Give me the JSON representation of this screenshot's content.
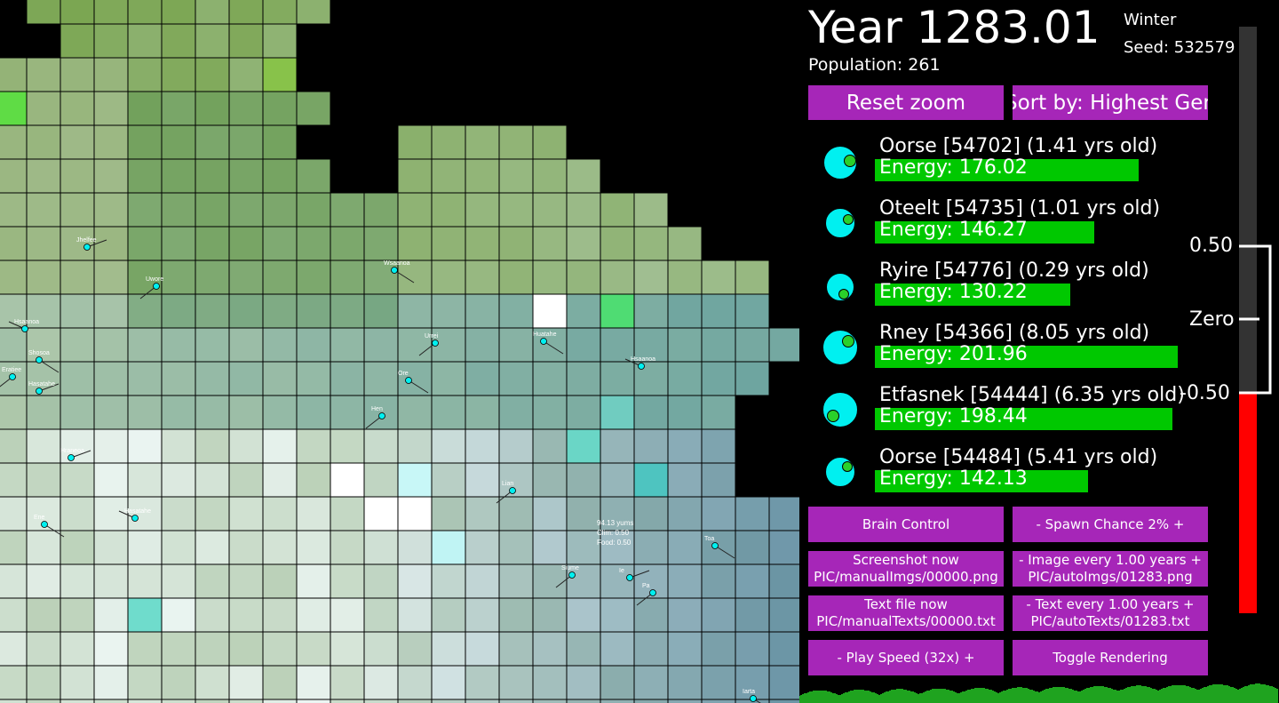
{
  "header": {
    "year": "Year 1283.01",
    "population": "Population: 261",
    "season": "Winter",
    "seed": "Seed: 532579"
  },
  "buttons": {
    "reset_zoom": "Reset zoom",
    "sort_by": "Sort by: Highest Gen",
    "brain_control": "Brain Control",
    "spawn_chance": "-   Spawn Chance 2%   +",
    "screenshot_line1": "Screenshot now",
    "screenshot_line2": "PIC/manualImgs/00000.png",
    "image_every_line1": "-   Image every 1.00 years   +",
    "image_every_line2": "PIC/autoImgs/01283.png",
    "textfile_line1": "Text file now",
    "textfile_line2": "PIC/manualTexts/00000.txt",
    "text_every_line1": "-   Text every 1.00 years   +",
    "text_every_line2": "PIC/autoTexts/01283.txt",
    "play_speed": "-    Play Speed (32x)    +",
    "toggle_rendering": "Toggle Rendering"
  },
  "creatures": [
    {
      "name": "Oorse [54702] (1.41 yrs old)",
      "energy_label": "Energy: 176.02",
      "energy": 176.02
    },
    {
      "name": "Oteelt [54735] (1.01 yrs old)",
      "energy_label": "Energy: 146.27",
      "energy": 146.27
    },
    {
      "name": "Ryire [54776] (0.29 yrs old)",
      "energy_label": "Energy: 130.22",
      "energy": 130.22
    },
    {
      "name": "Rney [54366] (8.05 yrs old)",
      "energy_label": "Energy: 201.96",
      "energy": 201.96
    },
    {
      "name": "Etfasnek [54444] (6.35 yrs old)",
      "energy_label": "Energy: 198.44",
      "energy": 198.44
    },
    {
      "name": "Oorse [54484] (5.41 yrs old)",
      "energy_label": "Energy: 142.13",
      "energy": 142.13
    }
  ],
  "scale": {
    "top_label": "0.50",
    "mid_label": "Zero",
    "bottom_label": "-0.50",
    "value": -0.5
  },
  "map_labels": [
    {
      "text": "Jhelfee"
    },
    {
      "text": "Uwore"
    },
    {
      "text": "Wsaanoa"
    },
    {
      "text": "Hsaanoa"
    },
    {
      "text": "Shosoa"
    },
    {
      "text": "Eratiee"
    },
    {
      "text": "Hasatahe"
    },
    {
      "text": "Urrei"
    },
    {
      "text": "Huatahe"
    },
    {
      "text": "Hsaanoa"
    },
    {
      "text": "Ore"
    },
    {
      "text": "Hen"
    },
    {
      "text": "Hraneoa"
    },
    {
      "text": "Lian"
    },
    {
      "text": "Ene"
    },
    {
      "text": "Hasatahe"
    },
    {
      "text": "Toa"
    },
    {
      "text": "Siume"
    },
    {
      "text": "Ie"
    },
    {
      "text": "Pa"
    },
    {
      "text": "Iarta"
    }
  ],
  "tile_tooltip": {
    "line1": "94.13 yums",
    "line2": "Clim: 0.50",
    "line3": "Food: 0.50"
  },
  "colors": {
    "button": "#a626b8",
    "energy_bar": "#00c800",
    "creature": "#00f0f0",
    "scale_negative": "#ff0000",
    "scale_track": "#333333"
  }
}
